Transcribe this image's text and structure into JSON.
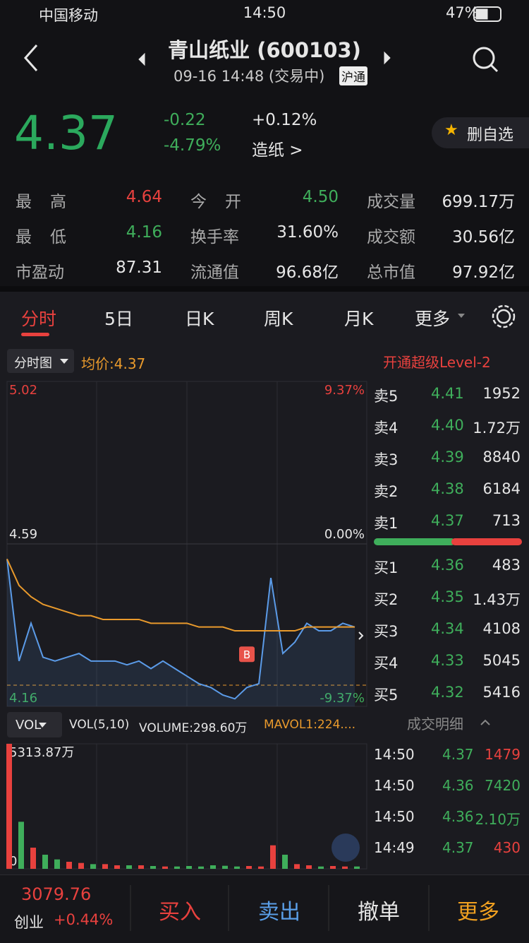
{
  "status_bar": {
    "carrier": "中国移动",
    "time": "14:50",
    "battery": "47%"
  },
  "header": {
    "title": "青山纸业 (600103)",
    "subtitle": "09-16 14:48 (交易中)",
    "badge": "沪通"
  },
  "quote": {
    "price": "4.37",
    "change": "-0.22",
    "change_pct": "-4.79%",
    "sector_change": "+0.12%",
    "sector": "造纸 >",
    "watch_button": "删自选"
  },
  "stats": [
    {
      "label": "最高",
      "value": "4.64",
      "color": "#e8413e"
    },
    {
      "label": "今开",
      "value": "4.50",
      "color": "#3fae5b"
    },
    {
      "label": "成交量",
      "value": "699.17万",
      "color": "#e6e6e6"
    },
    {
      "label": "最低",
      "value": "4.16",
      "color": "#3fae5b"
    },
    {
      "label": "换手率",
      "value": "31.60%",
      "color": "#e6e6e6"
    },
    {
      "label": "成交额",
      "value": "30.56亿",
      "color": "#e6e6e6"
    },
    {
      "label": "市盈动",
      "value": "87.31",
      "color": "#e6e6e6"
    },
    {
      "label": "流通值",
      "value": "96.68亿",
      "color": "#e6e6e6"
    },
    {
      "label": "总市值",
      "value": "97.92亿",
      "color": "#e6e6e6"
    }
  ],
  "tabs": [
    "分时",
    "5日",
    "日K",
    "周K",
    "月K",
    "更多"
  ],
  "chart_toolbar": {
    "mode": "分时图",
    "avg_price": "均价:4.37",
    "level2": "开通超级Level-2"
  },
  "price_chart": {
    "type": "line",
    "x": [
      0,
      8,
      16,
      24,
      32,
      40,
      48,
      56,
      64,
      72,
      80,
      88,
      96,
      104,
      112,
      120,
      128,
      136,
      144,
      152,
      160,
      168,
      176,
      184,
      192,
      200,
      208,
      216,
      224,
      232
    ],
    "xlim": [
      0,
      240
    ],
    "ylim": [
      4.16,
      5.02
    ],
    "yticks": [
      5.02,
      4.59,
      4.16
    ],
    "y2lim": [
      -9.37,
      9.37
    ],
    "y2ticks": [
      {
        "value": 9.37,
        "label": "9.37%"
      },
      {
        "value": 0,
        "label": "0.00%"
      },
      {
        "value": -9.37,
        "label": "-9.37%"
      }
    ],
    "series": [
      {
        "name": "价格",
        "color": "#5b9be8",
        "values": [
          4.55,
          4.28,
          4.38,
          4.29,
          4.28,
          4.29,
          4.3,
          4.28,
          4.28,
          4.28,
          4.27,
          4.28,
          4.26,
          4.28,
          4.26,
          4.24,
          4.22,
          4.21,
          4.19,
          4.18,
          4.21,
          4.22,
          4.5,
          4.3,
          4.33,
          4.38,
          4.36,
          4.36,
          4.38,
          4.37
        ]
      },
      {
        "name": "均价",
        "color": "#e99a2c",
        "values": [
          4.55,
          4.48,
          4.45,
          4.43,
          4.42,
          4.41,
          4.4,
          4.4,
          4.39,
          4.39,
          4.39,
          4.39,
          4.38,
          4.38,
          4.38,
          4.38,
          4.37,
          4.37,
          4.37,
          4.36,
          4.36,
          4.36,
          4.36,
          4.36,
          4.36,
          4.37,
          4.37,
          4.37,
          4.37,
          4.37
        ]
      }
    ],
    "buy_marker": "B"
  },
  "volume_toolbar": {
    "mode": "VOL",
    "params": "VOL(5,10)",
    "volume": "VOLUME:298.60万",
    "mavol": "MAVOL1:224...."
  },
  "volume_chart": {
    "type": "bar",
    "ylim": [
      0,
      5313.87
    ],
    "yticks": [
      {
        "value": 5313.87,
        "label": "5313.87万"
      },
      0
    ],
    "values": [
      5313.87,
      2000,
      900,
      600,
      400,
      300,
      250,
      200,
      200,
      150,
      150,
      150,
      120,
      100,
      100,
      120,
      100,
      150,
      130,
      100,
      120,
      100,
      1000,
      600,
      200,
      150,
      100,
      120,
      100,
      100
    ],
    "up_color": "#e8413e",
    "down_color": "#3fae5b"
  },
  "order_book": {
    "asks": [
      {
        "label": "卖5",
        "price": "4.41",
        "volume": "1952"
      },
      {
        "label": "卖4",
        "price": "4.40",
        "volume": "1.72万"
      },
      {
        "label": "卖3",
        "price": "4.39",
        "volume": "8840"
      },
      {
        "label": "卖2",
        "price": "4.38",
        "volume": "6184"
      },
      {
        "label": "卖1",
        "price": "4.37",
        "volume": "713"
      }
    ],
    "bids": [
      {
        "label": "买1",
        "price": "4.36",
        "volume": "483"
      },
      {
        "label": "买2",
        "price": "4.35",
        "volume": "1.43万"
      },
      {
        "label": "买3",
        "price": "4.34",
        "volume": "4108"
      },
      {
        "label": "买4",
        "price": "4.33",
        "volume": "5045"
      },
      {
        "label": "买5",
        "price": "4.32",
        "volume": "5416"
      }
    ]
  },
  "trades_title": "成交明细",
  "trades": [
    {
      "time": "14:50",
      "price": "4.37",
      "volume": "1479",
      "color": "#e8413e"
    },
    {
      "time": "14:50",
      "price": "4.36",
      "volume": "7420",
      "color": "#3fae5b"
    },
    {
      "time": "14:50",
      "price": "4.36",
      "volume": "2.10万",
      "color": "#3fae5b"
    },
    {
      "time": "14:49",
      "price": "4.37",
      "volume": "430",
      "color": "#e8413e"
    }
  ],
  "footer": {
    "index_value": "3079.76",
    "index_name": "创业",
    "index_change": "+0.44%",
    "buy": "买入",
    "sell": "卖出",
    "cancel": "撤单",
    "more": "更多"
  }
}
